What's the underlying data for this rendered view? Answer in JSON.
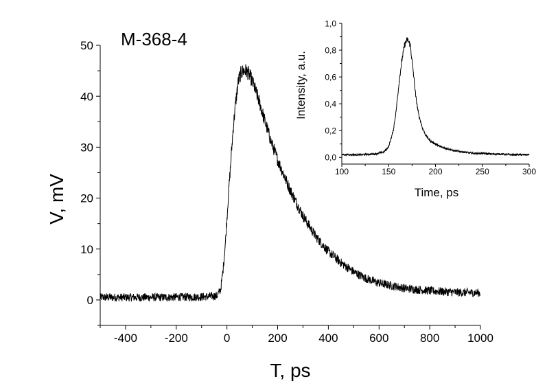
{
  "chart_data": [
    {
      "type": "line",
      "title": "M-368-4",
      "xlabel": "T, ps",
      "ylabel": "V, mV",
      "xlim": [
        -500,
        1000
      ],
      "ylim": [
        -5,
        50
      ],
      "xticks": [
        -400,
        -200,
        0,
        200,
        400,
        600,
        800,
        1000
      ],
      "xtick_labels": [
        "-400",
        "-200",
        "0",
        "200",
        "400",
        "600",
        "800",
        "1000"
      ],
      "yticks": [
        0,
        10,
        20,
        30,
        40,
        50
      ],
      "ytick_labels": [
        "0",
        "10",
        "20",
        "30",
        "40",
        "50"
      ],
      "grid": false,
      "series": [
        {
          "color": "#000000",
          "x": [
            -500,
            -300,
            -100,
            -40,
            -25,
            -15,
            -5,
            5,
            15,
            25,
            35,
            45,
            55,
            65,
            75,
            85,
            95,
            110,
            130,
            150,
            175,
            200,
            250,
            300,
            350,
            400,
            450,
            500,
            550,
            600,
            700,
            800,
            900,
            1000
          ],
          "y": [
            0.5,
            0.5,
            0.6,
            0.8,
            2,
            6,
            12,
            20,
            27,
            34,
            39,
            43,
            44.5,
            45,
            45,
            44.5,
            43.5,
            41.5,
            38.5,
            35,
            31,
            27.5,
            21.5,
            16.5,
            12.5,
            9.5,
            7.3,
            5.5,
            4.2,
            3.3,
            2.3,
            1.8,
            1.5,
            1.4
          ]
        }
      ]
    },
    {
      "type": "line",
      "title": "",
      "xlabel": "Time, ps",
      "ylabel": "Intensity, a.u.",
      "xlim": [
        100,
        300
      ],
      "ylim": [
        -0.05,
        1.0
      ],
      "xticks": [
        100,
        150,
        200,
        250,
        300
      ],
      "xtick_labels": [
        "100",
        "150",
        "200",
        "250",
        "300"
      ],
      "yticks": [
        0.0,
        0.2,
        0.4,
        0.6,
        0.8,
        1.0
      ],
      "ytick_labels": [
        "0,0",
        "0,2",
        "0,4",
        "0,6",
        "0,8",
        "1,0"
      ],
      "grid": false,
      "series": [
        {
          "color": "#000000",
          "x": [
            100,
            120,
            135,
            145,
            150,
            155,
            158,
            161,
            164,
            167,
            170,
            173,
            176,
            179,
            182,
            186,
            190,
            195,
            200,
            205,
            210,
            220,
            230,
            240,
            250,
            260,
            270,
            280,
            290,
            300
          ],
          "y": [
            0.02,
            0.02,
            0.025,
            0.04,
            0.08,
            0.2,
            0.35,
            0.55,
            0.72,
            0.84,
            0.88,
            0.84,
            0.66,
            0.45,
            0.32,
            0.22,
            0.16,
            0.12,
            0.1,
            0.08,
            0.07,
            0.05,
            0.04,
            0.03,
            0.03,
            0.025,
            0.025,
            0.02,
            0.02,
            0.02
          ]
        }
      ]
    }
  ]
}
